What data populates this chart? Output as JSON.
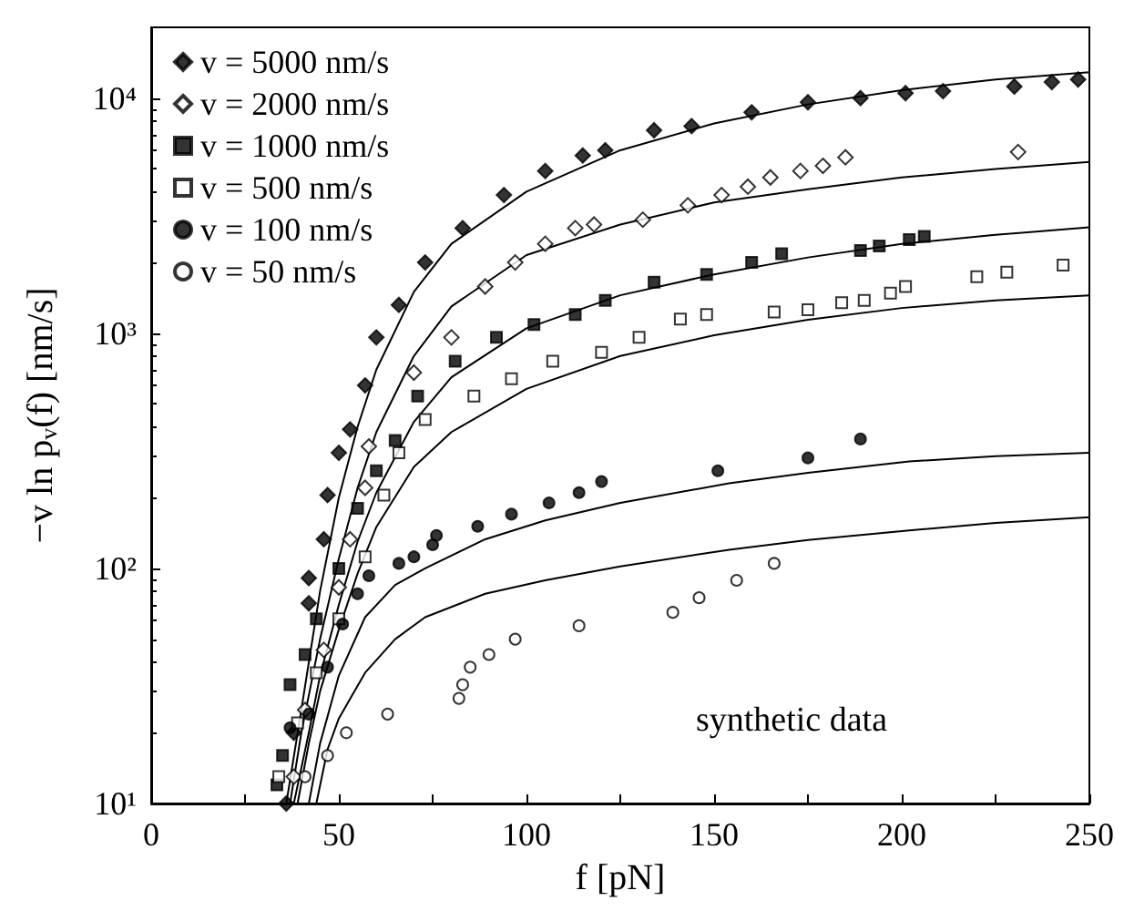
{
  "chart_data": {
    "type": "scatter",
    "xlabel": "f [pN]",
    "ylabel": "−v ln p$_{v}$(f) [nm/s]",
    "annotations": [
      "synthetic data"
    ],
    "xlim": [
      0,
      250
    ],
    "xticks": [
      0,
      {
        "value": 25,
        "label": null
      },
      50,
      {
        "value": 75,
        "label": null
      },
      100,
      {
        "value": 125,
        "label": null
      },
      150,
      {
        "value": 175,
        "label": null
      },
      200,
      {
        "value": 225,
        "label": null
      },
      250
    ],
    "ylim": [
      10,
      20000
    ],
    "yticks": [
      {
        "value": 10,
        "label": "10¹"
      },
      {
        "value": 100,
        "label": "10²"
      },
      {
        "value": 1000,
        "label": "10³"
      },
      {
        "value": 10000,
        "label": "10⁴"
      }
    ],
    "log": "y",
    "grid": false,
    "legend": "top left",
    "series": [
      {
        "name": "v = 5000 nm/s",
        "color": "#000000",
        "marker": "diamond",
        "x": [
          36,
          38,
          42,
          42,
          46,
          47,
          50,
          53,
          57,
          60,
          66,
          73,
          83,
          94,
          105,
          115,
          121,
          134,
          144,
          160,
          175,
          189,
          201,
          211,
          230,
          240,
          247
        ],
        "values": [
          10,
          20,
          71,
          91,
          133,
          205,
          310,
          390,
          600,
          960,
          1320,
          2000,
          2800,
          3870,
          4900,
          5700,
          6000,
          7300,
          7600,
          8700,
          9600,
          10000,
          10500,
          10700,
          11200,
          11700,
          12000
        ]
      },
      {
        "name": "v = 2000 nm/s",
        "color": "#ffffff",
        "marker": "diamond",
        "x": [
          38,
          41,
          46,
          50,
          53,
          57,
          58,
          70,
          80,
          89,
          97,
          105,
          113,
          118,
          131,
          143,
          152,
          159,
          165,
          173,
          179,
          185,
          231
        ],
        "values": [
          13,
          25,
          45,
          83,
          133,
          220,
          330,
          680,
          960,
          1580,
          2000,
          2400,
          2800,
          2900,
          3040,
          3500,
          3870,
          4200,
          4600,
          4900,
          5150,
          5600,
          5900
        ]
      },
      {
        "name": "v = 1000 nm/s",
        "color": "#000000",
        "marker": "square",
        "x": [
          33.5,
          35,
          37,
          41,
          44,
          50,
          55,
          60,
          65,
          71,
          81,
          92,
          102,
          113,
          121,
          134,
          148,
          160,
          168,
          189,
          194,
          202,
          206
        ],
        "values": [
          12,
          16,
          32,
          43,
          61,
          100,
          180,
          260,
          350,
          540,
          760,
          960,
          1090,
          1200,
          1380,
          1650,
          1780,
          2000,
          2180,
          2250,
          2350,
          2500,
          2580
        ]
      },
      {
        "name": "v = 500 nm/s",
        "color": "#ffffff",
        "marker": "square",
        "x": [
          34,
          39,
          44,
          50,
          57,
          62,
          66,
          73,
          86,
          96,
          107,
          120,
          130,
          141,
          148,
          166,
          175,
          184,
          190,
          197,
          201,
          220,
          228,
          243
        ],
        "values": [
          13,
          22,
          36,
          61,
          112,
          205,
          310,
          430,
          540,
          640,
          760,
          830,
          960,
          1150,
          1200,
          1230,
          1260,
          1350,
          1380,
          1480,
          1580,
          1740,
          1820,
          1950
        ]
      },
      {
        "name": "v = 100 nm/s",
        "color": "#000000",
        "marker": "circle",
        "x": [
          37,
          42,
          47,
          51,
          55,
          58,
          66,
          70,
          75,
          76,
          87,
          96,
          106,
          114,
          120,
          151,
          175,
          189
        ],
        "values": [
          21,
          24,
          38,
          58,
          78,
          93,
          105,
          112,
          126,
          138,
          151,
          170,
          190,
          210,
          234,
          260,
          295,
          355
        ]
      },
      {
        "name": "v = 50 nm/s",
        "color": "#ffffff",
        "marker": "circle",
        "x": [
          41,
          47,
          52,
          63,
          82,
          83,
          85,
          90,
          97,
          114,
          139,
          146,
          156,
          166
        ],
        "values": [
          13,
          16,
          20,
          24,
          28,
          32,
          38,
          43,
          50,
          57,
          65,
          75,
          89,
          105
        ]
      },
      {
        "type": "line",
        "color": "#000000",
        "marker": "none",
        "x": [
          36,
          40,
          45,
          50,
          55,
          60,
          70,
          80,
          100,
          125,
          150,
          175,
          200,
          225,
          250
        ],
        "values": [
          10,
          25,
          80,
          200,
          400,
          700,
          1500,
          2400,
          4000,
          6000,
          7800,
          9400,
          10800,
          12000,
          12900
        ]
      },
      {
        "type": "line",
        "color": "#000000",
        "marker": "none",
        "x": [
          37,
          40,
          45,
          50,
          55,
          60,
          70,
          80,
          100,
          125,
          150,
          175,
          200,
          225,
          250
        ],
        "values": [
          10,
          20,
          50,
          110,
          220,
          380,
          800,
          1300,
          2150,
          2900,
          3600,
          4100,
          4600,
          5000,
          5350
        ]
      },
      {
        "type": "line",
        "color": "#000000",
        "marker": "none",
        "x": [
          38,
          42,
          45,
          50,
          55,
          60,
          70,
          80,
          100,
          125,
          150,
          175,
          200,
          225,
          250
        ],
        "values": [
          10,
          20,
          35,
          70,
          130,
          210,
          420,
          650,
          1050,
          1450,
          1780,
          2100,
          2400,
          2620,
          2820
        ]
      },
      {
        "type": "line",
        "color": "#000000",
        "marker": "none",
        "x": [
          39,
          42,
          45,
          50,
          55,
          60,
          70,
          80,
          100,
          125,
          150,
          175,
          200,
          225,
          250
        ],
        "values": [
          10,
          18,
          30,
          55,
          95,
          150,
          270,
          380,
          580,
          800,
          980,
          1140,
          1280,
          1380,
          1450
        ]
      },
      {
        "type": "line",
        "color": "#000000",
        "marker": "none",
        "x": [
          42,
          45,
          50,
          57,
          65,
          73,
          89,
          105,
          125,
          154,
          175,
          202,
          225,
          250
        ],
        "values": [
          10,
          18,
          35,
          62,
          85,
          100,
          133,
          160,
          190,
          230,
          255,
          285,
          300,
          310
        ]
      },
      {
        "type": "line",
        "color": "#000000",
        "marker": "none",
        "x": [
          44,
          47,
          50,
          57,
          65,
          73,
          89,
          105,
          125,
          154,
          175,
          202,
          225,
          250
        ],
        "values": [
          10,
          17,
          23,
          36,
          50,
          62,
          78,
          89,
          102,
          120,
          132,
          145,
          156,
          165
        ]
      }
    ]
  }
}
